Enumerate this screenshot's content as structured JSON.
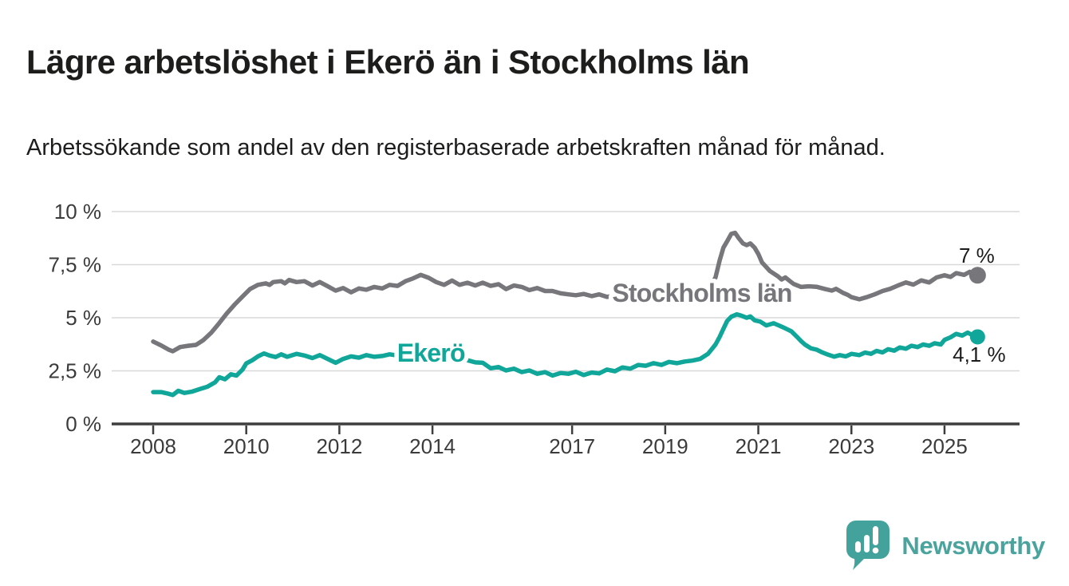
{
  "header": {
    "title": "Lägre arbetslöshet i Ekerö än i Stockholms län",
    "subtitle": "Arbetssökande som andel av den registerbaserade arbetskraften månad för månad."
  },
  "footer": {
    "brand": "Newsworthy",
    "logo_icon": "speech-bubble-bar-chart-icon"
  },
  "colors": {
    "stockholm_gray": "#76767b",
    "ekero_teal": "#10a69a",
    "grid": "#d9d9d9",
    "axis": "#3e3e3e",
    "tick_text": "#3b3b3b",
    "value_text": "#1c1c1c",
    "brand_teal": "#43a39c",
    "label_halo": "#ffffff"
  },
  "chart_data": {
    "type": "line",
    "title": "",
    "xlabel": "",
    "ylabel": "",
    "x_unit": "year (monthly observations)",
    "y_unit": "percent",
    "ylim": [
      0,
      10
    ],
    "xlim": [
      2007.1,
      2026.6
    ],
    "grid": "horizontal",
    "legend_position": "inline-on-line",
    "y_ticks": [
      {
        "value": 0,
        "label": "0 %"
      },
      {
        "value": 2.5,
        "label": "2,5 %"
      },
      {
        "value": 5,
        "label": "5 %"
      },
      {
        "value": 7.5,
        "label": "7,5 %"
      },
      {
        "value": 10,
        "label": "10 %"
      }
    ],
    "x_ticks": [
      {
        "value": 2008,
        "label": "2008"
      },
      {
        "value": 2010,
        "label": "2010"
      },
      {
        "value": 2012,
        "label": "2012"
      },
      {
        "value": 2014,
        "label": "2014"
      },
      {
        "value": 2017,
        "label": "2017"
      },
      {
        "value": 2019,
        "label": "2019"
      },
      {
        "value": 2021,
        "label": "2021"
      },
      {
        "value": 2023,
        "label": "2023"
      },
      {
        "value": 2025,
        "label": "2025"
      }
    ],
    "series": [
      {
        "name": "Stockholms län",
        "color": "#76767b",
        "end_label": "7 %",
        "end_value": 7.0,
        "line_label": {
          "t": 2017.86,
          "v": 6.16
        },
        "end_label_offset": [
          -1,
          -16
        ],
        "dot_r": 10.5,
        "points": [
          [
            2008.0,
            3.88
          ],
          [
            2008.17,
            3.7
          ],
          [
            2008.33,
            3.5
          ],
          [
            2008.42,
            3.42
          ],
          [
            2008.58,
            3.62
          ],
          [
            2008.75,
            3.68
          ],
          [
            2008.92,
            3.72
          ],
          [
            2009.08,
            3.95
          ],
          [
            2009.25,
            4.3
          ],
          [
            2009.42,
            4.75
          ],
          [
            2009.58,
            5.2
          ],
          [
            2009.75,
            5.62
          ],
          [
            2009.92,
            6.0
          ],
          [
            2010.08,
            6.35
          ],
          [
            2010.25,
            6.55
          ],
          [
            2010.42,
            6.62
          ],
          [
            2010.5,
            6.55
          ],
          [
            2010.58,
            6.68
          ],
          [
            2010.75,
            6.72
          ],
          [
            2010.83,
            6.62
          ],
          [
            2010.92,
            6.78
          ],
          [
            2011.08,
            6.68
          ],
          [
            2011.25,
            6.72
          ],
          [
            2011.42,
            6.52
          ],
          [
            2011.58,
            6.68
          ],
          [
            2011.75,
            6.48
          ],
          [
            2011.92,
            6.28
          ],
          [
            2012.08,
            6.4
          ],
          [
            2012.25,
            6.2
          ],
          [
            2012.42,
            6.38
          ],
          [
            2012.58,
            6.32
          ],
          [
            2012.75,
            6.45
          ],
          [
            2012.92,
            6.38
          ],
          [
            2013.08,
            6.55
          ],
          [
            2013.25,
            6.5
          ],
          [
            2013.42,
            6.72
          ],
          [
            2013.58,
            6.85
          ],
          [
            2013.75,
            7.02
          ],
          [
            2013.92,
            6.88
          ],
          [
            2014.08,
            6.68
          ],
          [
            2014.25,
            6.55
          ],
          [
            2014.42,
            6.75
          ],
          [
            2014.58,
            6.55
          ],
          [
            2014.75,
            6.65
          ],
          [
            2014.92,
            6.52
          ],
          [
            2015.08,
            6.65
          ],
          [
            2015.25,
            6.5
          ],
          [
            2015.42,
            6.58
          ],
          [
            2015.58,
            6.35
          ],
          [
            2015.75,
            6.52
          ],
          [
            2015.92,
            6.45
          ],
          [
            2016.08,
            6.3
          ],
          [
            2016.25,
            6.4
          ],
          [
            2016.42,
            6.26
          ],
          [
            2016.58,
            6.26
          ],
          [
            2016.75,
            6.15
          ],
          [
            2016.92,
            6.1
          ],
          [
            2017.08,
            6.06
          ],
          [
            2017.25,
            6.12
          ],
          [
            2017.42,
            6.02
          ],
          [
            2017.58,
            6.1
          ],
          [
            2017.75,
            5.98
          ],
          [
            2017.92,
            6.04
          ],
          [
            2018.08,
            6.1
          ],
          [
            2018.25,
            6.04
          ],
          [
            2018.42,
            6.12
          ],
          [
            2018.58,
            6.06
          ],
          [
            2018.75,
            6.1
          ],
          [
            2018.92,
            6.12
          ],
          [
            2019.08,
            6.15
          ],
          [
            2019.25,
            6.1
          ],
          [
            2019.42,
            6.16
          ],
          [
            2019.58,
            6.12
          ],
          [
            2019.75,
            6.2
          ],
          [
            2019.92,
            6.3
          ],
          [
            2020.08,
            6.9
          ],
          [
            2020.17,
            7.7
          ],
          [
            2020.25,
            8.3
          ],
          [
            2020.33,
            8.6
          ],
          [
            2020.42,
            8.95
          ],
          [
            2020.5,
            9.0
          ],
          [
            2020.58,
            8.75
          ],
          [
            2020.67,
            8.5
          ],
          [
            2020.75,
            8.42
          ],
          [
            2020.83,
            8.5
          ],
          [
            2020.92,
            8.3
          ],
          [
            2021.0,
            8.0
          ],
          [
            2021.08,
            7.6
          ],
          [
            2021.25,
            7.2
          ],
          [
            2021.42,
            6.95
          ],
          [
            2021.5,
            6.8
          ],
          [
            2021.58,
            6.9
          ],
          [
            2021.75,
            6.6
          ],
          [
            2021.92,
            6.45
          ],
          [
            2022.08,
            6.48
          ],
          [
            2022.25,
            6.46
          ],
          [
            2022.42,
            6.36
          ],
          [
            2022.58,
            6.28
          ],
          [
            2022.67,
            6.36
          ],
          [
            2022.83,
            6.16
          ],
          [
            2022.92,
            6.08
          ],
          [
            2023.0,
            5.97
          ],
          [
            2023.17,
            5.87
          ],
          [
            2023.33,
            5.97
          ],
          [
            2023.5,
            6.1
          ],
          [
            2023.67,
            6.26
          ],
          [
            2023.83,
            6.36
          ],
          [
            2024.0,
            6.52
          ],
          [
            2024.17,
            6.66
          ],
          [
            2024.33,
            6.56
          ],
          [
            2024.5,
            6.76
          ],
          [
            2024.67,
            6.66
          ],
          [
            2024.83,
            6.9
          ],
          [
            2025.0,
            7.0
          ],
          [
            2025.13,
            6.92
          ],
          [
            2025.25,
            7.1
          ],
          [
            2025.42,
            7.02
          ],
          [
            2025.54,
            7.16
          ],
          [
            2025.63,
            6.94
          ],
          [
            2025.71,
            7.0
          ]
        ]
      },
      {
        "name": "Ekerö",
        "color": "#10a69a",
        "end_label": "4,1 %",
        "end_value": 4.1,
        "line_label": {
          "t": 2013.24,
          "v": 3.34
        },
        "end_label_offset": [
          2,
          31
        ],
        "dot_r": 9.5,
        "points": [
          [
            2008.0,
            1.5
          ],
          [
            2008.17,
            1.5
          ],
          [
            2008.33,
            1.42
          ],
          [
            2008.42,
            1.36
          ],
          [
            2008.54,
            1.56
          ],
          [
            2008.67,
            1.46
          ],
          [
            2008.83,
            1.52
          ],
          [
            2009.0,
            1.64
          ],
          [
            2009.17,
            1.76
          ],
          [
            2009.33,
            1.96
          ],
          [
            2009.42,
            2.2
          ],
          [
            2009.54,
            2.1
          ],
          [
            2009.67,
            2.34
          ],
          [
            2009.79,
            2.28
          ],
          [
            2009.92,
            2.56
          ],
          [
            2010.0,
            2.85
          ],
          [
            2010.13,
            3.0
          ],
          [
            2010.25,
            3.18
          ],
          [
            2010.38,
            3.32
          ],
          [
            2010.5,
            3.22
          ],
          [
            2010.63,
            3.15
          ],
          [
            2010.75,
            3.28
          ],
          [
            2010.88,
            3.16
          ],
          [
            2011.08,
            3.3
          ],
          [
            2011.25,
            3.22
          ],
          [
            2011.42,
            3.1
          ],
          [
            2011.58,
            3.24
          ],
          [
            2011.75,
            3.06
          ],
          [
            2011.92,
            2.88
          ],
          [
            2012.08,
            3.06
          ],
          [
            2012.25,
            3.18
          ],
          [
            2012.42,
            3.12
          ],
          [
            2012.58,
            3.24
          ],
          [
            2012.75,
            3.16
          ],
          [
            2012.92,
            3.2
          ],
          [
            2013.08,
            3.28
          ],
          [
            2013.25,
            3.22
          ],
          [
            2013.42,
            3.3
          ],
          [
            2013.58,
            3.22
          ],
          [
            2013.75,
            3.26
          ],
          [
            2013.92,
            3.14
          ],
          [
            2014.08,
            3.18
          ],
          [
            2014.25,
            3.08
          ],
          [
            2014.42,
            3.12
          ],
          [
            2014.58,
            3.02
          ],
          [
            2014.75,
            3.0
          ],
          [
            2014.92,
            2.9
          ],
          [
            2015.08,
            2.88
          ],
          [
            2015.25,
            2.62
          ],
          [
            2015.42,
            2.68
          ],
          [
            2015.58,
            2.52
          ],
          [
            2015.75,
            2.6
          ],
          [
            2015.92,
            2.44
          ],
          [
            2016.08,
            2.52
          ],
          [
            2016.25,
            2.36
          ],
          [
            2016.42,
            2.44
          ],
          [
            2016.58,
            2.28
          ],
          [
            2016.75,
            2.4
          ],
          [
            2016.92,
            2.36
          ],
          [
            2017.08,
            2.46
          ],
          [
            2017.25,
            2.3
          ],
          [
            2017.42,
            2.42
          ],
          [
            2017.58,
            2.38
          ],
          [
            2017.75,
            2.56
          ],
          [
            2017.92,
            2.48
          ],
          [
            2018.08,
            2.66
          ],
          [
            2018.25,
            2.6
          ],
          [
            2018.42,
            2.78
          ],
          [
            2018.58,
            2.74
          ],
          [
            2018.75,
            2.86
          ],
          [
            2018.92,
            2.78
          ],
          [
            2019.08,
            2.92
          ],
          [
            2019.25,
            2.86
          ],
          [
            2019.42,
            2.94
          ],
          [
            2019.58,
            2.98
          ],
          [
            2019.75,
            3.06
          ],
          [
            2019.92,
            3.3
          ],
          [
            2020.08,
            3.74
          ],
          [
            2020.17,
            4.1
          ],
          [
            2020.25,
            4.48
          ],
          [
            2020.33,
            4.85
          ],
          [
            2020.42,
            5.05
          ],
          [
            2020.54,
            5.16
          ],
          [
            2020.63,
            5.1
          ],
          [
            2020.75,
            5.0
          ],
          [
            2020.83,
            5.06
          ],
          [
            2020.92,
            4.88
          ],
          [
            2021.04,
            4.82
          ],
          [
            2021.17,
            4.64
          ],
          [
            2021.33,
            4.74
          ],
          [
            2021.46,
            4.62
          ],
          [
            2021.58,
            4.5
          ],
          [
            2021.71,
            4.36
          ],
          [
            2021.83,
            4.1
          ],
          [
            2021.92,
            3.9
          ],
          [
            2022.0,
            3.74
          ],
          [
            2022.13,
            3.56
          ],
          [
            2022.25,
            3.5
          ],
          [
            2022.38,
            3.36
          ],
          [
            2022.5,
            3.26
          ],
          [
            2022.63,
            3.17
          ],
          [
            2022.75,
            3.24
          ],
          [
            2022.88,
            3.18
          ],
          [
            2023.0,
            3.3
          ],
          [
            2023.17,
            3.24
          ],
          [
            2023.29,
            3.36
          ],
          [
            2023.42,
            3.3
          ],
          [
            2023.54,
            3.44
          ],
          [
            2023.67,
            3.37
          ],
          [
            2023.79,
            3.52
          ],
          [
            2023.92,
            3.45
          ],
          [
            2024.04,
            3.6
          ],
          [
            2024.17,
            3.54
          ],
          [
            2024.29,
            3.68
          ],
          [
            2024.42,
            3.62
          ],
          [
            2024.54,
            3.74
          ],
          [
            2024.67,
            3.68
          ],
          [
            2024.79,
            3.8
          ],
          [
            2024.92,
            3.74
          ],
          [
            2025.0,
            3.96
          ],
          [
            2025.13,
            4.08
          ],
          [
            2025.25,
            4.24
          ],
          [
            2025.38,
            4.16
          ],
          [
            2025.5,
            4.3
          ],
          [
            2025.58,
            4.2
          ],
          [
            2025.67,
            4.28
          ],
          [
            2025.71,
            4.1
          ]
        ]
      }
    ]
  }
}
